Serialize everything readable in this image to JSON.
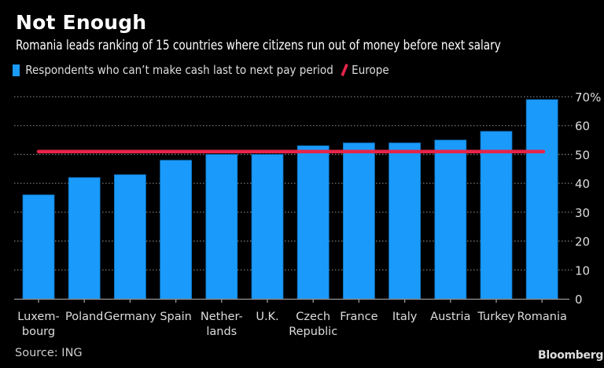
{
  "header": {
    "title": "Not Enough",
    "subtitle": "Romania leads ranking of 15 countries where citizens run out of money before next salary"
  },
  "legend": {
    "series_label": "Respondents who can’t make cash last to next pay period",
    "reference_label": "Europe"
  },
  "footer": {
    "source": "Source: ING",
    "brand": "Bloomberg"
  },
  "colors": {
    "bar": "#1a9bfc",
    "reference_line": "#e6244a",
    "background": "#000000",
    "gridline": "#777777"
  },
  "chart_data": {
    "type": "bar",
    "title": "Not Enough",
    "subtitle": "Romania leads ranking of 15 countries where citizens run out of money before next salary",
    "categories": [
      [
        "Luxem-",
        "bourg"
      ],
      [
        "Poland"
      ],
      [
        "Germany"
      ],
      [
        "Spain"
      ],
      [
        "Nether-",
        "lands"
      ],
      [
        "U.K."
      ],
      [
        "Czech",
        "Republic"
      ],
      [
        "France"
      ],
      [
        "Italy"
      ],
      [
        "Austria"
      ],
      [
        "Turkey"
      ],
      [
        "Romania"
      ]
    ],
    "series": [
      {
        "name": "Respondents who can’t make cash last to next pay period",
        "values": [
          36,
          42,
          43,
          48,
          50,
          50,
          53,
          54,
          54,
          55,
          58,
          69
        ]
      }
    ],
    "reference_line": {
      "name": "Europe",
      "value": 51
    },
    "ylim": [
      0,
      70
    ],
    "yticks": [
      0,
      10,
      20,
      30,
      40,
      50,
      60,
      70
    ],
    "ytick_labels": [
      "0",
      "10",
      "20",
      "30",
      "40",
      "50",
      "60",
      "70%"
    ],
    "yaxis_side": "right",
    "grid": true,
    "legend_position": "top-left",
    "xlabel": "",
    "ylabel": "",
    "source": "Source: ING"
  }
}
